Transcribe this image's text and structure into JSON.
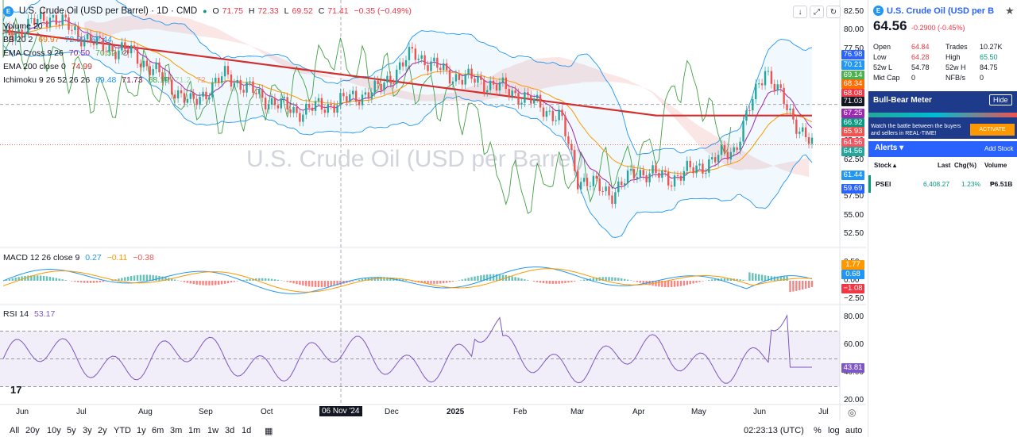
{
  "chart": {
    "icon_letter": "E",
    "title": "U.S. Crude Oil (USD per Barrel) · 1D · CMD",
    "ohlc": {
      "o_label": "O",
      "o": "71.75",
      "h_label": "H",
      "h": "72.33",
      "l_label": "L",
      "l": "69.52",
      "c_label": "C",
      "c": "71.41",
      "chg": "−0.35 (−0.49%)"
    },
    "watermark": "U.S. Crude Oil (USD per Barrel)",
    "indicators": {
      "volume": "Volume 20",
      "bb": {
        "name": "BB 20 2",
        "v1": "69.97",
        "v2": "72.50",
        "v3": "67.44"
      },
      "ema_cross": {
        "name": "EMA Cross 9 26",
        "v1": "70.50",
        "v2": "70.52"
      },
      "ema200": {
        "name": "EMA 200 close 0",
        "v1": "74.99"
      },
      "ichimoku": {
        "name": "Ichimoku 9 26 52 26 26",
        "v1": "69.48",
        "v2": "71.73",
        "v3": "68.19",
        "v4": "71.2",
        "v5": "72"
      }
    },
    "macd": {
      "name": "MACD 12 26 close 9",
      "v1": "0.27",
      "v2": "−0.11",
      "v3": "−0.38"
    },
    "rsi": {
      "name": "RSI 14",
      "v1": "53.17"
    },
    "price_axis": [
      "82.50",
      "80.00",
      "77.50",
      "75.00",
      "72.50",
      "70.00",
      "67.50",
      "65.00",
      "62.50",
      "60.00",
      "57.50",
      "55.00",
      "52.50"
    ],
    "price_tags": [
      {
        "text": "76.98",
        "color": "#2962ff"
      },
      {
        "text": "70.21",
        "color": "#2196f3"
      },
      {
        "text": "69.14",
        "color": "#4caf50"
      },
      {
        "text": "68.34",
        "color": "#ff6d00"
      },
      {
        "text": "68.08",
        "color": "#f23645"
      },
      {
        "text": "71.03",
        "color": "#131722"
      },
      {
        "text": "67.25",
        "color": "#9c27b0"
      },
      {
        "text": "66.92",
        "color": "#089981"
      },
      {
        "text": "65.93",
        "color": "#ef5350"
      },
      {
        "text": "64.56",
        "color": "#f7525f"
      },
      {
        "text": "64.56",
        "color": "#26a69a"
      },
      {
        "text": "61.44",
        "color": "#2196f3"
      },
      {
        "text": "59.69",
        "color": "#2962ff"
      }
    ],
    "macd_axis": [
      "2.50",
      "0.00",
      "−2.50"
    ],
    "macd_tags": [
      {
        "text": "1.77",
        "color": "#ff9800"
      },
      {
        "text": "0.68",
        "color": "#2196f3"
      },
      {
        "text": "−1.08",
        "color": "#f23645"
      }
    ],
    "rsi_axis": [
      "80.00",
      "60.00",
      "40.00",
      "20.00"
    ],
    "rsi_tag": {
      "text": "43.81",
      "color": "#7e57c2"
    },
    "x_labels": [
      "Jun",
      "Jul",
      "Aug",
      "Sep",
      "Oct",
      "06 Nov '24",
      "Dec",
      "2025",
      "Feb",
      "Mar",
      "Apr",
      "May",
      "Jun",
      "Jul"
    ],
    "crosshair_price": "70.00",
    "timeframes": [
      "All",
      "20y",
      "10y",
      "5y",
      "3y",
      "2y",
      "YTD",
      "1y",
      "6m",
      "3m",
      "1m",
      "1w",
      "3d",
      "1d"
    ],
    "time": "02:23:13 (UTC)",
    "scale_opts": [
      "%",
      "log",
      "auto"
    ]
  },
  "panel": {
    "icon_letter": "E",
    "title": "U.S. Crude Oil (USD per B",
    "price": "64.56",
    "change": "-0.2900",
    "change_pct": "(-0.45%)",
    "stats": [
      {
        "k1": "Open",
        "v1": "64.84",
        "c1": "red",
        "k2": "Trades",
        "v2": "10.27K",
        "c2": ""
      },
      {
        "k1": "Low",
        "v1": "64.28",
        "c1": "red",
        "k2": "High",
        "v2": "65.50",
        "c2": "green"
      },
      {
        "k1": "52w L",
        "v1": "54.78",
        "c1": "",
        "k2": "52w H",
        "v2": "84.75",
        "c2": ""
      },
      {
        "k1": "Mkt Cap",
        "v1": "0",
        "c1": "",
        "k2": "NFB/s",
        "v2": "0",
        "c2": ""
      }
    ],
    "bull_bear": {
      "title": "Bull-Bear Meter",
      "hide": "Hide",
      "text": "Watch the battle between the buyers and sellers in REAL-TIME!",
      "activate": "ACTIVATE"
    },
    "alerts": {
      "title": "Alerts ▾",
      "add": "Add Stock"
    },
    "table": {
      "headers": [
        "Stock ▴",
        "Last",
        "Chg(%)",
        "Volume"
      ],
      "rows": [
        {
          "stock": "PSEI",
          "last": "6,408.27",
          "chg": "1.23%",
          "vol": "₱6.51B"
        }
      ]
    }
  },
  "colors": {
    "up": "#26a69a",
    "down": "#ef5350",
    "ema200": "#d32f2f",
    "accent": "#2962ff",
    "panel_header": "#2962ff"
  }
}
